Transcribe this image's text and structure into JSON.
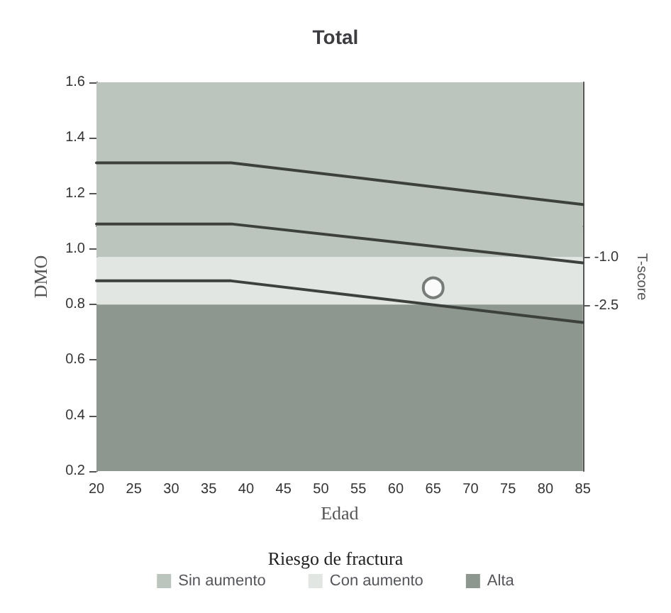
{
  "chart_data": {
    "type": "line",
    "title": "Total",
    "xlabel": "Edad",
    "ylabel": "DMO",
    "y2label": "T-score",
    "legend_title": "Riesgo de fractura",
    "xlim": [
      20,
      85
    ],
    "xticks": [
      20,
      25,
      30,
      35,
      40,
      45,
      50,
      55,
      60,
      65,
      70,
      75,
      80,
      85
    ],
    "ylim": [
      0.2,
      1.6
    ],
    "yticks": [
      0.2,
      0.4,
      0.6,
      0.8,
      {
        "value": 1,
        "label": "1.0"
      },
      1.2,
      1.4,
      1.6
    ],
    "y2lim": [
      -7.64,
      4.45
    ],
    "y2ticks": [
      {
        "value": -1,
        "label": "-1.0"
      },
      -2.5
    ],
    "series": [
      {
        "color": "#3c413d",
        "x": [
          20,
          38,
          85
        ],
        "values": [
          1.31,
          1.31,
          1.16
        ]
      },
      {
        "color": "#3c413d",
        "x": [
          20,
          38,
          85
        ],
        "values": [
          1.09,
          1.09,
          0.95
        ]
      },
      {
        "color": "#3c413d",
        "x": [
          20,
          38,
          85
        ],
        "values": [
          0.885,
          0.885,
          0.735
        ]
      },
      {
        "type": "scatter",
        "color": "#5a5f5b",
        "marker": "circle",
        "x": [
          65
        ],
        "values": [
          0.86
        ]
      }
    ],
    "bands": [
      {
        "axis": "y",
        "from": 0.97,
        "to": 1.6,
        "label": "Sin aumento",
        "color": "#bcc5bd"
      },
      {
        "axis": "y",
        "from": 0.8,
        "to": 0.97,
        "label": "Con aumento",
        "color": "#e2e6e2"
      },
      {
        "axis": "y",
        "from": 0.2,
        "to": 0.8,
        "label": "Alta",
        "color": "#8d978f"
      }
    ],
    "grid": false,
    "legend": "bottom",
    "line_style": "solid",
    "marker": "none"
  }
}
